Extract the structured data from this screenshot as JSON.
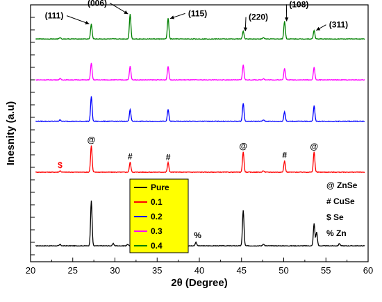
{
  "chart_data": {
    "type": "line",
    "title": "",
    "xlabel": "2θ (Degree)",
    "ylabel": "Inesnity (a.u)",
    "xlim": [
      20,
      60
    ],
    "x_ticks": [
      20,
      25,
      30,
      35,
      40,
      45,
      50,
      55,
      60
    ],
    "y_ticks_visible": false,
    "legend": {
      "placement": "center-left",
      "entries": [
        "Pure",
        "0.1",
        "0.2",
        "0.3",
        "0.4"
      ]
    },
    "series": [
      {
        "name": "Pure",
        "color": "#000000",
        "baseline": 0.0,
        "noise": 0.012,
        "peaks": [
          {
            "x": 23.5,
            "h": 0.03
          },
          {
            "x": 27.2,
            "h": 0.99
          },
          {
            "x": 29.8,
            "h": 0.05
          },
          {
            "x": 31.5,
            "h": 0.03
          },
          {
            "x": 34.5,
            "h": 0.07
          },
          {
            "x": 39.6,
            "h": 0.08
          },
          {
            "x": 45.2,
            "h": 0.78
          },
          {
            "x": 47.6,
            "h": 0.04
          },
          {
            "x": 53.6,
            "h": 0.49
          },
          {
            "x": 53.9,
            "h": 0.3
          },
          {
            "x": 56.6,
            "h": 0.05
          }
        ]
      },
      {
        "name": "0.1",
        "color": "#ff0000",
        "baseline": 1.62,
        "noise": 0.012,
        "peaks": [
          {
            "x": 23.5,
            "h": 0.03
          },
          {
            "x": 27.2,
            "h": 0.59
          },
          {
            "x": 31.8,
            "h": 0.22
          },
          {
            "x": 36.3,
            "h": 0.21
          },
          {
            "x": 45.2,
            "h": 0.45
          },
          {
            "x": 47.6,
            "h": 0.03
          },
          {
            "x": 50.1,
            "h": 0.25
          },
          {
            "x": 53.6,
            "h": 0.45
          }
        ]
      },
      {
        "name": "0.2",
        "color": "#0000ff",
        "baseline": 2.74,
        "noise": 0.012,
        "peaks": [
          {
            "x": 23.5,
            "h": 0.03
          },
          {
            "x": 27.2,
            "h": 0.55
          },
          {
            "x": 31.8,
            "h": 0.26
          },
          {
            "x": 36.3,
            "h": 0.26
          },
          {
            "x": 45.2,
            "h": 0.4
          },
          {
            "x": 47.6,
            "h": 0.03
          },
          {
            "x": 50.1,
            "h": 0.21
          },
          {
            "x": 53.6,
            "h": 0.34
          }
        ]
      },
      {
        "name": "0.3",
        "color": "#ff00ff",
        "baseline": 3.65,
        "noise": 0.012,
        "peaks": [
          {
            "x": 23.5,
            "h": 0.03
          },
          {
            "x": 27.2,
            "h": 0.37
          },
          {
            "x": 31.8,
            "h": 0.3
          },
          {
            "x": 36.3,
            "h": 0.3
          },
          {
            "x": 45.2,
            "h": 0.33
          },
          {
            "x": 47.6,
            "h": 0.03
          },
          {
            "x": 50.1,
            "h": 0.26
          },
          {
            "x": 53.6,
            "h": 0.28
          }
        ]
      },
      {
        "name": "0.4",
        "color": "#008000",
        "baseline": 4.55,
        "noise": 0.012,
        "peaks": [
          {
            "x": 23.5,
            "h": 0.03
          },
          {
            "x": 27.2,
            "h": 0.33
          },
          {
            "x": 31.8,
            "h": 0.55
          },
          {
            "x": 36.3,
            "h": 0.46
          },
          {
            "x": 45.2,
            "h": 0.17
          },
          {
            "x": 47.6,
            "h": 0.03
          },
          {
            "x": 50.1,
            "h": 0.39
          },
          {
            "x": 53.6,
            "h": 0.19
          }
        ]
      }
    ],
    "ylim": [
      -0.35,
      5.3
    ],
    "annotations": {
      "planes": [
        {
          "label": "(111)",
          "x": 27.2,
          "y": 4.88,
          "tx": 22.8,
          "ty": 5.0
        },
        {
          "label": "(006)",
          "x": 31.8,
          "y": 5.1,
          "tx": 27.9,
          "ty": 5.28
        },
        {
          "label": "(115)",
          "x": 36.3,
          "y": 5.0,
          "tx": 39.8,
          "ty": 5.05
        },
        {
          "label": "(220)",
          "x": 45.2,
          "y": 4.72,
          "tx": 47.0,
          "ty": 4.97
        },
        {
          "label": "(108)",
          "x": 50.1,
          "y": 4.94,
          "tx": 51.8,
          "ty": 5.25
        },
        {
          "label": "(311)",
          "x": 53.6,
          "y": 4.74,
          "tx": 56.5,
          "ty": 4.8
        }
      ],
      "markers": [
        {
          "label": "$",
          "x": 23.5,
          "y": 1.71,
          "color": "#ff0000"
        },
        {
          "label": "@",
          "x": 27.2,
          "y": 2.27,
          "color": "#000000"
        },
        {
          "label": "#",
          "x": 31.8,
          "y": 1.9,
          "color": "#000000"
        },
        {
          "label": "#",
          "x": 36.3,
          "y": 1.89,
          "color": "#000000"
        },
        {
          "label": "@",
          "x": 45.2,
          "y": 2.13,
          "color": "#000000"
        },
        {
          "label": "#",
          "x": 50.1,
          "y": 1.93,
          "color": "#000000"
        },
        {
          "label": "@",
          "x": 53.6,
          "y": 2.12,
          "color": "#000000"
        },
        {
          "label": "%",
          "x": 39.8,
          "y": 0.17,
          "color": "#000000"
        }
      ],
      "phase_key": [
        "@ ZnSe",
        "# CuSe",
        "$ Se",
        "% Zn"
      ]
    }
  }
}
